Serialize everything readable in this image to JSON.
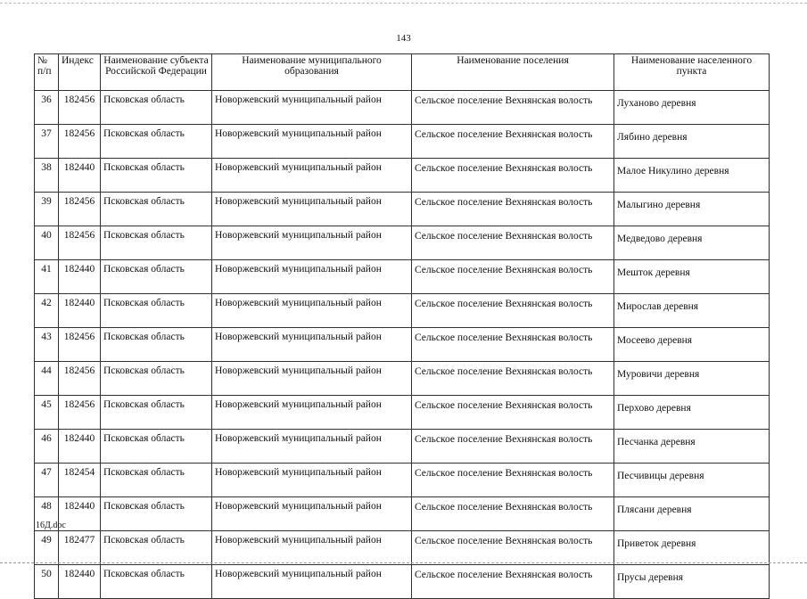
{
  "page_number": "143",
  "footer": "16Д.doc",
  "table": {
    "headers": [
      "№ п/п",
      "Индекс",
      "Наименование субъекта Российской Федерации",
      "Наименование муниципального образования",
      "Наименование поселения",
      "Наименование населенного пункта"
    ],
    "rows": [
      [
        "36",
        "182456",
        "Псковская область",
        "Новоржевский муниципальный район",
        "Сельское поселение Вехнянская волость",
        "Луханово деревня"
      ],
      [
        "37",
        "182456",
        "Псковская область",
        "Новоржевский муниципальный район",
        "Сельское поселение Вехнянская волость",
        "Лябино деревня"
      ],
      [
        "38",
        "182440",
        "Псковская область",
        "Новоржевский муниципальный район",
        "Сельское поселение Вехнянская волость",
        "Малое Никулино деревня"
      ],
      [
        "39",
        "182456",
        "Псковская область",
        "Новоржевский муниципальный район",
        "Сельское поселение Вехнянская волость",
        "Малыгино деревня"
      ],
      [
        "40",
        "182456",
        "Псковская область",
        "Новоржевский муниципальный район",
        "Сельское поселение Вехнянская волость",
        "Медведово деревня"
      ],
      [
        "41",
        "182440",
        "Псковская область",
        "Новоржевский муниципальный район",
        "Сельское поселение Вехнянская волость",
        "Мешток деревня"
      ],
      [
        "42",
        "182440",
        "Псковская область",
        "Новоржевский муниципальный район",
        "Сельское поселение Вехнянская волость",
        "Мирослав деревня"
      ],
      [
        "43",
        "182456",
        "Псковская область",
        "Новоржевский муниципальный район",
        "Сельское поселение Вехнянская волость",
        "Мосеево деревня"
      ],
      [
        "44",
        "182456",
        "Псковская область",
        "Новоржевский муниципальный район",
        "Сельское поселение Вехнянская волость",
        "Муровичи деревня"
      ],
      [
        "45",
        "182456",
        "Псковская область",
        "Новоржевский муниципальный район",
        "Сельское поселение Вехнянская волость",
        "Перхово деревня"
      ],
      [
        "46",
        "182440",
        "Псковская область",
        "Новоржевский муниципальный район",
        "Сельское поселение Вехнянская волость",
        "Песчанка деревня"
      ],
      [
        "47",
        "182454",
        "Псковская область",
        "Новоржевский муниципальный район",
        "Сельское поселение Вехнянская волость",
        "Песчивицы деревня"
      ],
      [
        "48",
        "182440",
        "Псковская область",
        "Новоржевский муниципальный район",
        "Сельское поселение Вехнянская волость",
        "Плясани деревня"
      ],
      [
        "49",
        "182477",
        "Псковская область",
        "Новоржевский муниципальный район",
        "Сельское поселение Вехнянская волость",
        "Приветок деревня"
      ],
      [
        "50",
        "182440",
        "Псковская область",
        "Новоржевский муниципальный район",
        "Сельское поселение Вехнянская волость",
        "Прусы деревня"
      ]
    ]
  }
}
